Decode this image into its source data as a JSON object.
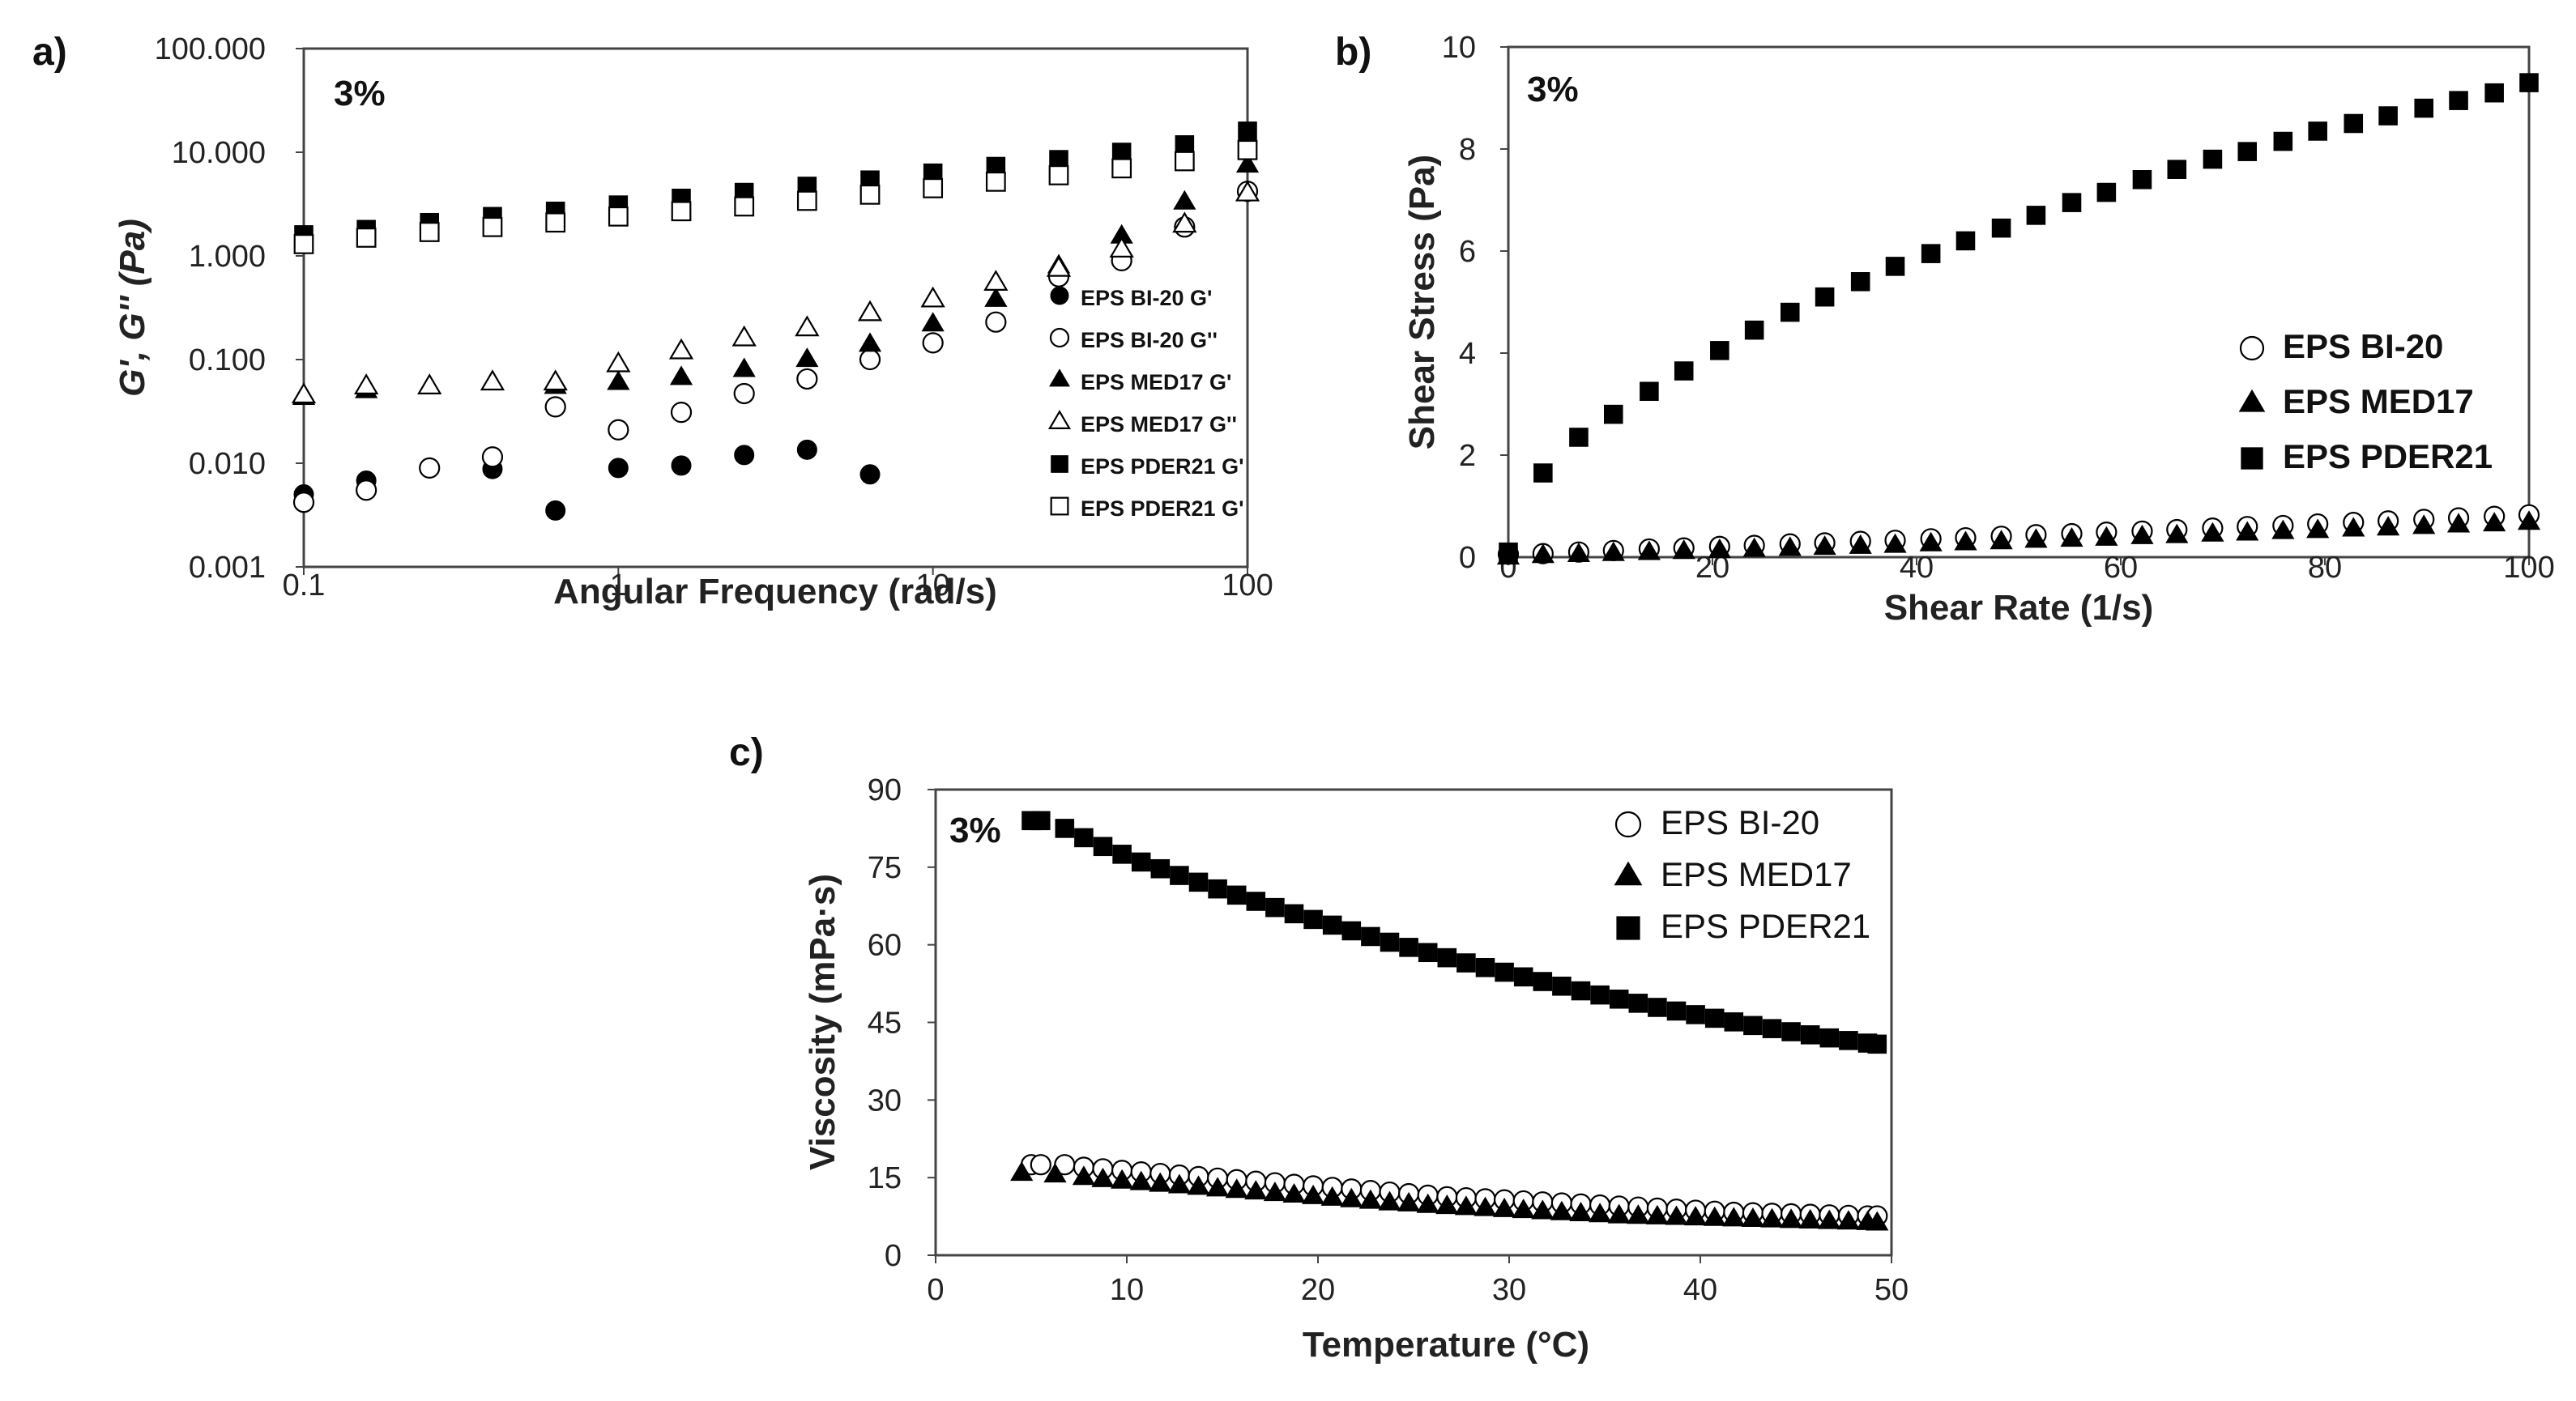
{
  "chart_data": [
    {
      "panel": "a)",
      "type": "scatter",
      "annotation": "3%",
      "xscale": "log",
      "yscale": "log",
      "xlim": [
        0.1,
        100
      ],
      "ylim": [
        0.001,
        100
      ],
      "xlabel": "Angular Frequency (rad/s)",
      "ylabel": "G', G'' (Pa)",
      "xticks": [
        "0.1",
        "1",
        "10",
        "100"
      ],
      "yticks": [
        "0.001",
        "0.010",
        "0.100",
        "1.000",
        "10.000",
        "100.000"
      ],
      "legend_position": "right",
      "series": [
        {
          "name": "EPS BI-20  G'",
          "marker": "filled-circle",
          "x": [
            0.1,
            0.158,
            0.251,
            0.398,
            0.631,
            1.0,
            1.585,
            2.512,
            3.981,
            6.31
          ],
          "y": [
            0.005,
            0.0068,
            0.009,
            0.0088,
            0.0035,
            0.009,
            0.0095,
            0.012,
            0.0135,
            0.0078
          ]
        },
        {
          "name": "EPS BI-20  G''",
          "marker": "open-circle",
          "x": [
            0.1,
            0.158,
            0.251,
            0.398,
            0.631,
            1.0,
            1.585,
            2.512,
            3.981,
            6.31,
            10.0,
            15.85,
            25.12,
            39.81,
            63.1,
            100.0
          ],
          "y": [
            0.0042,
            0.0055,
            0.009,
            0.0115,
            0.035,
            0.021,
            0.031,
            0.047,
            0.065,
            0.1,
            0.145,
            0.23,
            0.63,
            0.9,
            1.9,
            4.2
          ]
        },
        {
          "name": "EPS MED17 G'",
          "marker": "filled-triangle",
          "x": [
            0.1,
            0.158,
            0.251,
            0.398,
            0.631,
            1.0,
            1.585,
            2.512,
            3.981,
            6.31,
            10.0,
            15.85,
            25.12,
            39.81,
            63.1,
            100.0
          ],
          "y": [
            0.043,
            0.05,
            0.055,
            0.06,
            0.055,
            0.06,
            0.067,
            0.08,
            0.1,
            0.14,
            0.22,
            0.38,
            0.8,
            1.55,
            3.3,
            7.5
          ]
        },
        {
          "name": "EPS MED17 G''",
          "marker": "open-triangle",
          "x": [
            0.1,
            0.158,
            0.251,
            0.398,
            0.631,
            1.0,
            1.585,
            2.512,
            3.981,
            6.31,
            10.0,
            15.85,
            25.12,
            39.81,
            63.1,
            100.0
          ],
          "y": [
            0.045,
            0.055,
            0.055,
            0.06,
            0.06,
            0.09,
            0.12,
            0.16,
            0.2,
            0.28,
            0.38,
            0.55,
            0.75,
            1.15,
            2.0,
            4.0
          ]
        },
        {
          "name": "EPS PDER21 G'",
          "marker": "filled-square",
          "x": [
            0.1,
            0.158,
            0.251,
            0.398,
            0.631,
            1.0,
            1.585,
            2.512,
            3.981,
            6.31,
            10.0,
            15.85,
            25.12,
            39.81,
            63.1,
            100.0
          ],
          "y": [
            1.6,
            1.8,
            2.1,
            2.4,
            2.7,
            3.1,
            3.6,
            4.1,
            4.7,
            5.4,
            6.3,
            7.3,
            8.5,
            10.0,
            11.8,
            16.0
          ]
        },
        {
          "name": "EPS PDER21 G'",
          "marker": "open-square",
          "x": [
            0.1,
            0.158,
            0.251,
            0.398,
            0.631,
            1.0,
            1.585,
            2.512,
            3.981,
            6.31,
            10.0,
            15.85,
            25.12,
            39.81,
            63.1,
            100.0
          ],
          "y": [
            1.3,
            1.5,
            1.7,
            1.9,
            2.1,
            2.4,
            2.7,
            3.0,
            3.4,
            3.9,
            4.5,
            5.2,
            6.0,
            7.0,
            8.2,
            10.5
          ]
        }
      ]
    },
    {
      "panel": "b)",
      "type": "scatter",
      "annotation": "3%",
      "xlim": [
        0,
        100
      ],
      "ylim": [
        0,
        10
      ],
      "xlabel": "Shear Rate (1/s)",
      "ylabel": "Shear Stress (Pa)",
      "xticks": [
        "0",
        "20",
        "40",
        "60",
        "80",
        "100"
      ],
      "yticks": [
        "0",
        "2",
        "4",
        "6",
        "8",
        "10"
      ],
      "legend_position": "center-right",
      "series": [
        {
          "name": "EPS BI-20",
          "marker": "open-circle",
          "x": [
            0,
            3.4,
            6.9,
            10.3,
            13.8,
            17.2,
            20.7,
            24.1,
            27.6,
            31.0,
            34.5,
            37.9,
            41.4,
            44.8,
            48.3,
            51.7,
            55.2,
            58.6,
            62.1,
            65.5,
            69.0,
            72.4,
            75.9,
            79.3,
            82.8,
            86.2,
            89.7,
            93.1,
            96.6,
            100
          ],
          "y": [
            0.06,
            0.07,
            0.1,
            0.13,
            0.16,
            0.18,
            0.21,
            0.23,
            0.26,
            0.28,
            0.31,
            0.33,
            0.36,
            0.38,
            0.41,
            0.44,
            0.46,
            0.49,
            0.51,
            0.54,
            0.57,
            0.6,
            0.62,
            0.65,
            0.68,
            0.71,
            0.74,
            0.77,
            0.8,
            0.83
          ]
        },
        {
          "name": "EPS MED17",
          "marker": "filled-triangle",
          "x": [
            0,
            3.4,
            6.9,
            10.3,
            13.8,
            17.2,
            20.7,
            24.1,
            27.6,
            31.0,
            34.5,
            37.9,
            41.4,
            44.8,
            48.3,
            51.7,
            55.2,
            58.6,
            62.1,
            65.5,
            69.0,
            72.4,
            75.9,
            79.3,
            82.8,
            86.2,
            89.7,
            93.1,
            96.6,
            100
          ],
          "y": [
            0.0,
            0.03,
            0.05,
            0.07,
            0.09,
            0.11,
            0.13,
            0.15,
            0.17,
            0.19,
            0.21,
            0.23,
            0.26,
            0.28,
            0.3,
            0.33,
            0.35,
            0.37,
            0.4,
            0.42,
            0.45,
            0.47,
            0.5,
            0.52,
            0.55,
            0.57,
            0.6,
            0.63,
            0.65,
            0.68
          ]
        },
        {
          "name": "EPS PDER21",
          "marker": "filled-square",
          "x": [
            0,
            3.4,
            6.9,
            10.3,
            13.8,
            17.2,
            20.7,
            24.1,
            27.6,
            31.0,
            34.5,
            37.9,
            41.4,
            44.8,
            48.3,
            51.7,
            55.2,
            58.6,
            62.1,
            65.5,
            69.0,
            72.4,
            75.9,
            79.3,
            82.8,
            86.2,
            89.7,
            93.1,
            96.6,
            100
          ],
          "y": [
            0.1,
            1.65,
            2.35,
            2.8,
            3.25,
            3.65,
            4.05,
            4.45,
            4.8,
            5.1,
            5.4,
            5.7,
            5.95,
            6.2,
            6.45,
            6.7,
            6.95,
            7.15,
            7.4,
            7.6,
            7.8,
            7.95,
            8.15,
            8.35,
            8.5,
            8.65,
            8.8,
            8.95,
            9.1,
            9.3
          ]
        }
      ]
    },
    {
      "panel": "c)",
      "type": "scatter",
      "annotation": "3%",
      "xlim": [
        0,
        50
      ],
      "ylim": [
        0,
        90
      ],
      "xlabel": "Temperature (°C)",
      "ylabel": "Viscosity  (mPa·s)",
      "xticks": [
        "0",
        "10",
        "20",
        "30",
        "40",
        "50"
      ],
      "yticks": [
        "0",
        "15",
        "30",
        "45",
        "60",
        "75",
        "90"
      ],
      "legend_position": "top-right",
      "series": [
        {
          "name": "EPS BI-20",
          "marker": "open-circle",
          "x": [
            5.0,
            5.5,
            6.75,
            7.75,
            8.75,
            9.75,
            10.75,
            11.75,
            12.75,
            13.75,
            14.75,
            15.75,
            16.75,
            17.75,
            18.75,
            19.75,
            20.75,
            21.75,
            22.75,
            23.75,
            24.75,
            25.75,
            26.75,
            27.75,
            28.75,
            29.75,
            30.75,
            31.75,
            32.75,
            33.75,
            34.75,
            35.75,
            36.75,
            37.75,
            38.75,
            39.75,
            40.75,
            41.75,
            42.75,
            43.75,
            44.75,
            45.75,
            46.75,
            47.75,
            48.75,
            49.25
          ],
          "y": [
            17.5,
            17.5,
            17.5,
            17.0,
            16.7,
            16.4,
            16.1,
            15.8,
            15.5,
            15.2,
            14.9,
            14.6,
            14.3,
            14.0,
            13.7,
            13.4,
            13.1,
            12.8,
            12.5,
            12.2,
            11.9,
            11.6,
            11.3,
            11.1,
            10.9,
            10.7,
            10.5,
            10.3,
            10.1,
            9.9,
            9.7,
            9.5,
            9.3,
            9.1,
            8.9,
            8.7,
            8.5,
            8.3,
            8.2,
            8.1,
            8.0,
            7.9,
            7.8,
            7.7,
            7.6,
            7.6
          ]
        },
        {
          "name": "EPS MED17",
          "marker": "filled-triangle",
          "x": [
            4.5,
            6.25,
            7.75,
            8.75,
            9.75,
            10.75,
            11.75,
            12.75,
            13.75,
            14.75,
            15.75,
            16.75,
            17.75,
            18.75,
            19.75,
            20.75,
            21.75,
            22.75,
            23.75,
            24.75,
            25.75,
            26.75,
            27.75,
            28.75,
            29.75,
            30.75,
            31.75,
            32.75,
            33.75,
            34.75,
            35.75,
            36.75,
            37.75,
            38.75,
            39.75,
            40.75,
            41.75,
            42.75,
            43.75,
            44.75,
            45.75,
            46.75,
            47.75,
            48.75,
            49.25
          ],
          "y": [
            15.8,
            15.5,
            15.0,
            14.6,
            14.3,
            14.0,
            13.7,
            13.4,
            13.1,
            12.8,
            12.5,
            12.2,
            11.9,
            11.6,
            11.3,
            11.0,
            10.7,
            10.4,
            10.1,
            9.9,
            9.6,
            9.4,
            9.2,
            9.0,
            8.8,
            8.6,
            8.4,
            8.2,
            8.0,
            7.8,
            7.6,
            7.5,
            7.4,
            7.3,
            7.2,
            7.1,
            7.0,
            6.9,
            6.8,
            6.7,
            6.6,
            6.5,
            6.4,
            6.3,
            6.2
          ]
        },
        {
          "name": "EPS PDER21",
          "marker": "filled-square",
          "x": [
            5.0,
            5.5,
            6.75,
            7.75,
            8.75,
            9.75,
            10.75,
            11.75,
            12.75,
            13.75,
            14.75,
            15.75,
            16.75,
            17.75,
            18.75,
            19.75,
            20.75,
            21.75,
            22.75,
            23.75,
            24.75,
            25.75,
            26.75,
            27.75,
            28.75,
            29.75,
            30.75,
            31.75,
            32.75,
            33.75,
            34.75,
            35.75,
            36.75,
            37.75,
            38.75,
            39.75,
            40.75,
            41.75,
            42.75,
            43.75,
            44.75,
            45.75,
            46.75,
            47.75,
            48.75,
            49.25
          ],
          "y": [
            84.0,
            84.0,
            82.5,
            80.7,
            79.0,
            77.5,
            76.0,
            74.7,
            73.4,
            72.1,
            70.8,
            69.6,
            68.4,
            67.2,
            66.0,
            64.9,
            63.8,
            62.7,
            61.6,
            60.5,
            59.5,
            58.5,
            57.5,
            56.5,
            55.6,
            54.7,
            53.8,
            52.9,
            52.0,
            51.1,
            50.3,
            49.5,
            48.7,
            47.9,
            47.2,
            46.5,
            45.8,
            45.1,
            44.4,
            43.8,
            43.2,
            42.6,
            42.0,
            41.5,
            41.0,
            40.8
          ]
        }
      ]
    }
  ]
}
